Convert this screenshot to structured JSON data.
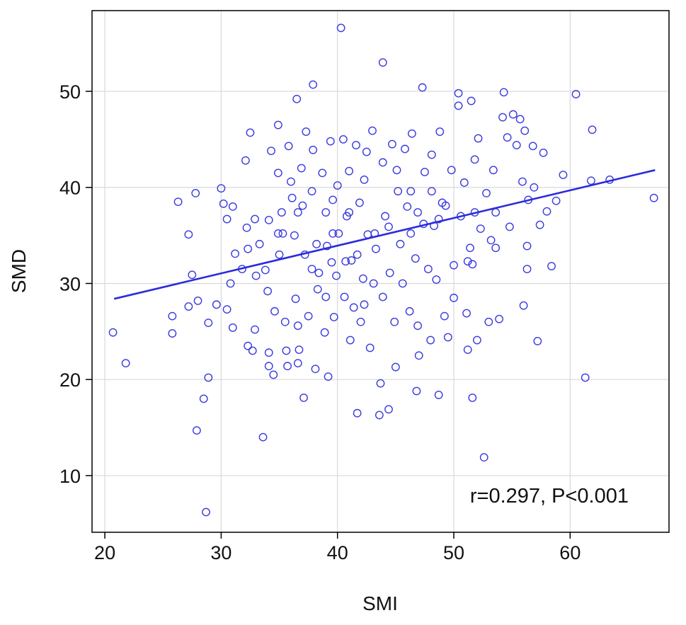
{
  "chart_data": {
    "type": "scatter",
    "xlabel": "SMI",
    "ylabel": "SMD",
    "annotation": "r=0.297, P<0.001",
    "xlim": [
      18.9,
      68.5
    ],
    "ylim": [
      4.1,
      58.4
    ],
    "xticks": [
      20,
      30,
      40,
      50,
      60
    ],
    "yticks": [
      10,
      20,
      30,
      40,
      50
    ],
    "grid": true,
    "series": [
      {
        "color": "#3a3ae0",
        "x": [
          20.7,
          21.8,
          25.8,
          25.8,
          26.3,
          27.2,
          27.2,
          27.5,
          27.8,
          28.0,
          27.9,
          28.5,
          28.7,
          28.9,
          28.9,
          29.6,
          30.0,
          30.2,
          30.5,
          30.5,
          30.8,
          31.0,
          31.0,
          31.2,
          31.8,
          32.1,
          32.2,
          32.3,
          32.5,
          32.7,
          32.9,
          32.9,
          33.3,
          33.6,
          33.8,
          34.0,
          34.1,
          34.1,
          34.1,
          34.3,
          34.5,
          34.6,
          34.9,
          34.9,
          35.0,
          35.2,
          35.3,
          35.5,
          35.6,
          35.7,
          35.8,
          36.0,
          36.1,
          36.3,
          36.4,
          36.5,
          36.6,
          36.7,
          36.9,
          37.0,
          37.1,
          37.2,
          37.3,
          37.5,
          37.8,
          37.9,
          37.9,
          38.1,
          38.3,
          38.4,
          38.7,
          38.9,
          39.1,
          39.2,
          39.4,
          39.5,
          39.6,
          39.7,
          40.0,
          40.1,
          40.3,
          40.5,
          40.6,
          40.8,
          41.0,
          41.1,
          41.2,
          41.4,
          41.6,
          41.7,
          41.9,
          42.0,
          42.2,
          42.3,
          42.5,
          42.6,
          42.8,
          43.0,
          43.1,
          43.3,
          43.6,
          43.7,
          43.9,
          43.9,
          44.1,
          44.4,
          44.5,
          44.7,
          44.9,
          45.0,
          45.2,
          45.4,
          45.6,
          45.8,
          46.0,
          46.2,
          46.4,
          46.7,
          46.8,
          46.9,
          47.0,
          47.3,
          47.4,
          47.5,
          47.8,
          48.0,
          48.1,
          48.3,
          48.5,
          48.7,
          48.8,
          49.0,
          49.2,
          49.5,
          49.8,
          50.0,
          50.4,
          50.4,
          50.6,
          50.9,
          51.1,
          51.2,
          51.4,
          51.5,
          51.6,
          51.6,
          51.8,
          52.0,
          52.1,
          52.3,
          52.6,
          52.8,
          53.0,
          53.2,
          53.4,
          53.6,
          53.9,
          54.2,
          54.3,
          54.6,
          54.8,
          55.1,
          55.4,
          55.7,
          55.9,
          56.0,
          56.1,
          56.3,
          56.4,
          56.8,
          56.9,
          57.2,
          57.4,
          57.7,
          58.0,
          58.4,
          58.8,
          59.4,
          60.5,
          61.3,
          61.8,
          61.9,
          63.4,
          67.2,
          32.3,
          33.0,
          34.9,
          36.6,
          38.2,
          39.6,
          39.9,
          40.7,
          41.0,
          42.3,
          43.2,
          44.4,
          45.1,
          46.3,
          46.9,
          48.1,
          49.3,
          50.0,
          51.2,
          51.8,
          53.6,
          56.3,
          36.6,
          39.0,
          41.7,
          43.9,
          46.3,
          48.7,
          39.0,
          37.8
        ],
        "values": [
          24.9,
          21.7,
          26.6,
          24.8,
          38.5,
          35.1,
          27.6,
          30.9,
          39.4,
          28.2,
          14.7,
          18.0,
          6.2,
          20.2,
          25.9,
          27.8,
          39.9,
          38.3,
          36.7,
          27.3,
          30.0,
          25.4,
          38.0,
          33.1,
          31.5,
          42.8,
          35.8,
          23.5,
          45.7,
          23.0,
          36.7,
          25.2,
          34.1,
          14.0,
          31.4,
          29.2,
          22.8,
          21.4,
          36.6,
          43.8,
          20.5,
          27.1,
          46.5,
          41.5,
          33.0,
          37.4,
          35.2,
          26.0,
          23.0,
          21.4,
          44.3,
          40.6,
          38.9,
          35.0,
          28.4,
          49.2,
          21.7,
          23.1,
          42.0,
          38.1,
          18.1,
          33.0,
          45.8,
          26.6,
          39.6,
          50.7,
          43.9,
          21.1,
          29.4,
          31.1,
          41.5,
          24.9,
          33.9,
          20.3,
          44.8,
          32.2,
          38.7,
          26.5,
          40.2,
          35.2,
          56.6,
          45.0,
          28.6,
          37.0,
          41.7,
          24.1,
          32.4,
          27.5,
          44.4,
          16.5,
          38.4,
          26.0,
          30.5,
          40.8,
          43.7,
          35.1,
          23.3,
          45.9,
          30.0,
          33.6,
          16.3,
          19.6,
          53.0,
          42.6,
          37.0,
          16.9,
          31.1,
          44.5,
          26.0,
          21.3,
          39.6,
          34.1,
          30.0,
          44.0,
          38.0,
          27.1,
          45.6,
          32.6,
          18.8,
          25.6,
          22.5,
          50.4,
          36.2,
          41.6,
          31.5,
          24.1,
          43.4,
          36.0,
          30.4,
          18.4,
          45.8,
          38.4,
          26.6,
          24.4,
          41.8,
          28.5,
          49.8,
          48.5,
          37.0,
          40.5,
          26.9,
          23.1,
          33.7,
          49.0,
          32.0,
          18.1,
          42.9,
          24.1,
          45.1,
          35.7,
          11.9,
          39.4,
          26.0,
          34.5,
          41.8,
          33.7,
          26.3,
          47.3,
          49.9,
          45.2,
          35.9,
          47.6,
          44.4,
          47.1,
          40.6,
          27.7,
          45.9,
          33.9,
          38.7,
          44.3,
          40.0,
          24.0,
          36.1,
          43.6,
          37.5,
          31.8,
          38.6,
          41.3,
          49.7,
          20.2,
          40.7,
          46.0,
          40.8,
          38.9,
          33.6,
          30.8,
          35.2,
          37.4,
          34.1,
          35.2,
          30.8,
          32.3,
          37.4,
          27.8,
          35.2,
          35.9,
          41.8,
          35.2,
          37.4,
          39.6,
          38.1,
          31.9,
          32.3,
          37.4,
          37.4,
          31.5,
          25.6,
          37.4,
          33.0,
          28.6,
          39.6,
          36.7,
          28.6,
          31.5
        ]
      }
    ],
    "lines": [
      {
        "color": "#2c2cdc",
        "x": [
          20.8,
          67.3
        ],
        "values": [
          28.4,
          41.8
        ]
      }
    ]
  }
}
